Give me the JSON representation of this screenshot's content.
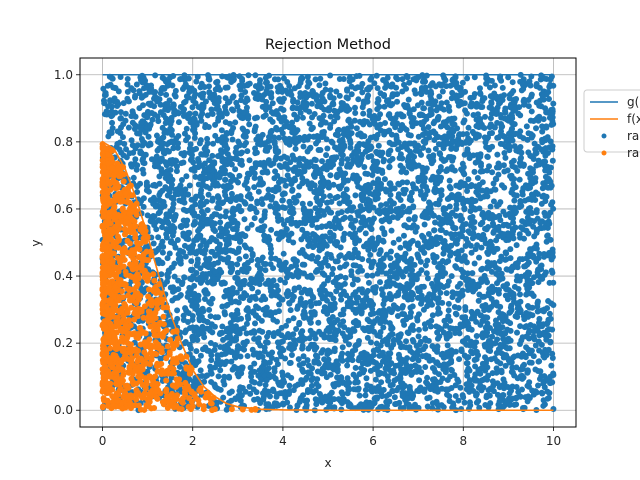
{
  "chart_data": {
    "type": "scatter",
    "title": "Rejection Method",
    "xlabel": "x",
    "ylabel": "y",
    "xlim": [
      -0.5,
      10.5
    ],
    "ylim": [
      -0.05,
      1.05
    ],
    "xticks": [
      "0",
      "2",
      "4",
      "6",
      "8",
      "10"
    ],
    "yticks": [
      "0.0",
      "0.2",
      "0.4",
      "0.6",
      "0.8",
      "1.0"
    ],
    "grid": true,
    "legend_placement": "outside-upper-right",
    "series": [
      {
        "name": "g(",
        "kind": "line",
        "color": "#1f77b4",
        "x": [
          0,
          10
        ],
        "y": [
          1.0,
          1.0
        ]
      },
      {
        "name": "f(x",
        "kind": "line",
        "color": "#ff7f0e",
        "x": [
          0,
          0.25,
          0.5,
          0.75,
          1.0,
          1.25,
          1.5,
          1.75,
          2.0,
          2.25,
          2.5,
          2.75,
          3.0,
          3.5,
          4.0,
          5.0,
          6.0,
          7.0,
          8.0,
          9.0,
          10.0
        ],
        "y": [
          0.8,
          0.78,
          0.72,
          0.63,
          0.52,
          0.4,
          0.29,
          0.2,
          0.12,
          0.07,
          0.04,
          0.02,
          0.01,
          0.003,
          0.001,
          0.0,
          0.0,
          0.0,
          0.0,
          0.0,
          0.0
        ]
      },
      {
        "name": "ra",
        "kind": "scatter",
        "color": "#1f77b4",
        "x_range": [
          0,
          10
        ],
        "y_range": [
          0,
          1
        ],
        "point_count": 6000
      },
      {
        "name": "ra",
        "kind": "scatter",
        "color": "#ff7f0e",
        "x_range": [
          0,
          10
        ],
        "y_range": [
          0,
          1
        ],
        "below_series": "f(x",
        "point_count": 1150
      }
    ]
  }
}
